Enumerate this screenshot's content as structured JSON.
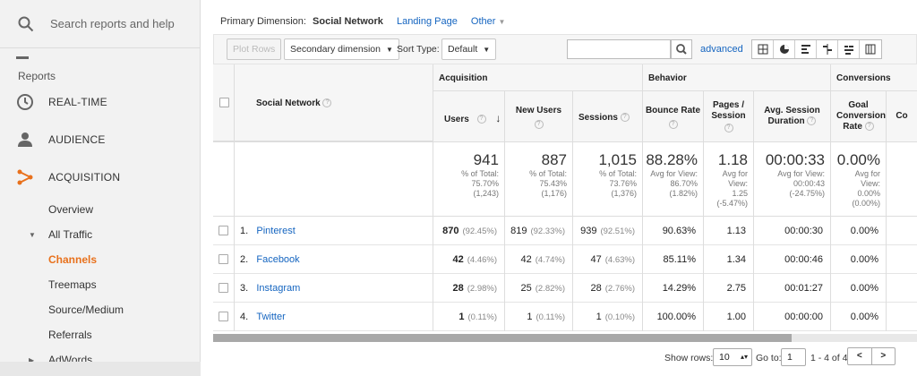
{
  "sidebar": {
    "search_placeholder": "Search reports and help",
    "section_label": "Reports",
    "nav": [
      {
        "label": "REAL-TIME",
        "icon": "clock-icon"
      },
      {
        "label": "AUDIENCE",
        "icon": "person-icon"
      },
      {
        "label": "ACQUISITION",
        "icon": "acquisition-icon",
        "accent": "#e8711c"
      }
    ],
    "sub_items": [
      {
        "label": "Overview"
      },
      {
        "label": "All Traffic"
      },
      {
        "label": "Channels"
      },
      {
        "label": "Treemaps"
      },
      {
        "label": "Source/Medium"
      },
      {
        "label": "Referrals"
      },
      {
        "label": "AdWords"
      }
    ]
  },
  "primary_dimension": {
    "label": "Primary Dimension:",
    "current": "Social Network",
    "alt": "Landing Page",
    "other": "Other"
  },
  "toolbar": {
    "plot_rows": "Plot Rows",
    "secondary_dimension": "Secondary dimension",
    "sort_type_label": "Sort Type:",
    "sort_value": "Default",
    "advanced": "advanced"
  },
  "table": {
    "groups": {
      "acquisition": "Acquisition",
      "behavior": "Behavior",
      "conversions": "Conversions"
    },
    "columns": {
      "dimension": "Social Network",
      "users": "Users",
      "new_users": "New Users",
      "sessions": "Sessions",
      "bounce_rate": "Bounce Rate",
      "pages_session": "Pages / Session",
      "avg_duration": "Avg. Session Duration",
      "goal_rate": "Goal Conversion Rate",
      "cut": "Co"
    },
    "totals": {
      "users": {
        "value": "941",
        "l1": "% of Total:",
        "l2": "75.70%",
        "l3": "(1,243)"
      },
      "new_users": {
        "value": "887",
        "l1": "% of Total:",
        "l2": "75.43%",
        "l3": "(1,176)"
      },
      "sessions": {
        "value": "1,015",
        "l1": "% of Total:",
        "l2": "73.76%",
        "l3": "(1,376)"
      },
      "bounce_rate": {
        "value": "88.28%",
        "l1": "Avg for View:",
        "l2": "86.70%",
        "l3": "(1.82%)"
      },
      "pages_session": {
        "value": "1.18",
        "l1": "Avg for",
        "l2": "View:",
        "l3": "1.25",
        "l4": "(-5.47%)"
      },
      "avg_duration": {
        "value": "00:00:33",
        "l1": "Avg for View:",
        "l2": "00:00:43",
        "l3": "(-24.75%)"
      },
      "goal_rate": {
        "value": "0.00%",
        "l1": "Avg for",
        "l2": "View:",
        "l3": "0.00%",
        "l4": "(0.00%)"
      }
    },
    "rows": [
      {
        "idx": "1.",
        "name": "Pinterest",
        "users": "870",
        "users_pct": "(92.45%)",
        "new_users": "819",
        "new_users_pct": "(92.33%)",
        "sessions": "939",
        "sessions_pct": "(92.51%)",
        "bounce": "90.63%",
        "pages": "1.13",
        "duration": "00:00:30",
        "goal": "0.00%"
      },
      {
        "idx": "2.",
        "name": "Facebook",
        "users": "42",
        "users_pct": "(4.46%)",
        "new_users": "42",
        "new_users_pct": "(4.74%)",
        "sessions": "47",
        "sessions_pct": "(4.63%)",
        "bounce": "85.11%",
        "pages": "1.34",
        "duration": "00:00:46",
        "goal": "0.00%"
      },
      {
        "idx": "3.",
        "name": "Instagram",
        "users": "28",
        "users_pct": "(2.98%)",
        "new_users": "25",
        "new_users_pct": "(2.82%)",
        "sessions": "28",
        "sessions_pct": "(2.76%)",
        "bounce": "14.29%",
        "pages": "2.75",
        "duration": "00:01:27",
        "goal": "0.00%"
      },
      {
        "idx": "4.",
        "name": "Twitter",
        "users": "1",
        "users_pct": "(0.11%)",
        "new_users": "1",
        "new_users_pct": "(0.11%)",
        "sessions": "1",
        "sessions_pct": "(0.10%)",
        "bounce": "100.00%",
        "pages": "1.00",
        "duration": "00:00:00",
        "goal": "0.00%"
      }
    ]
  },
  "pager": {
    "show_rows_label": "Show rows:",
    "show_rows_value": "10",
    "goto_label": "Go to:",
    "goto_value": "1",
    "range": "1 - 4 of 4"
  },
  "colors": {
    "accent": "#e8711c",
    "link": "#1565c0"
  }
}
